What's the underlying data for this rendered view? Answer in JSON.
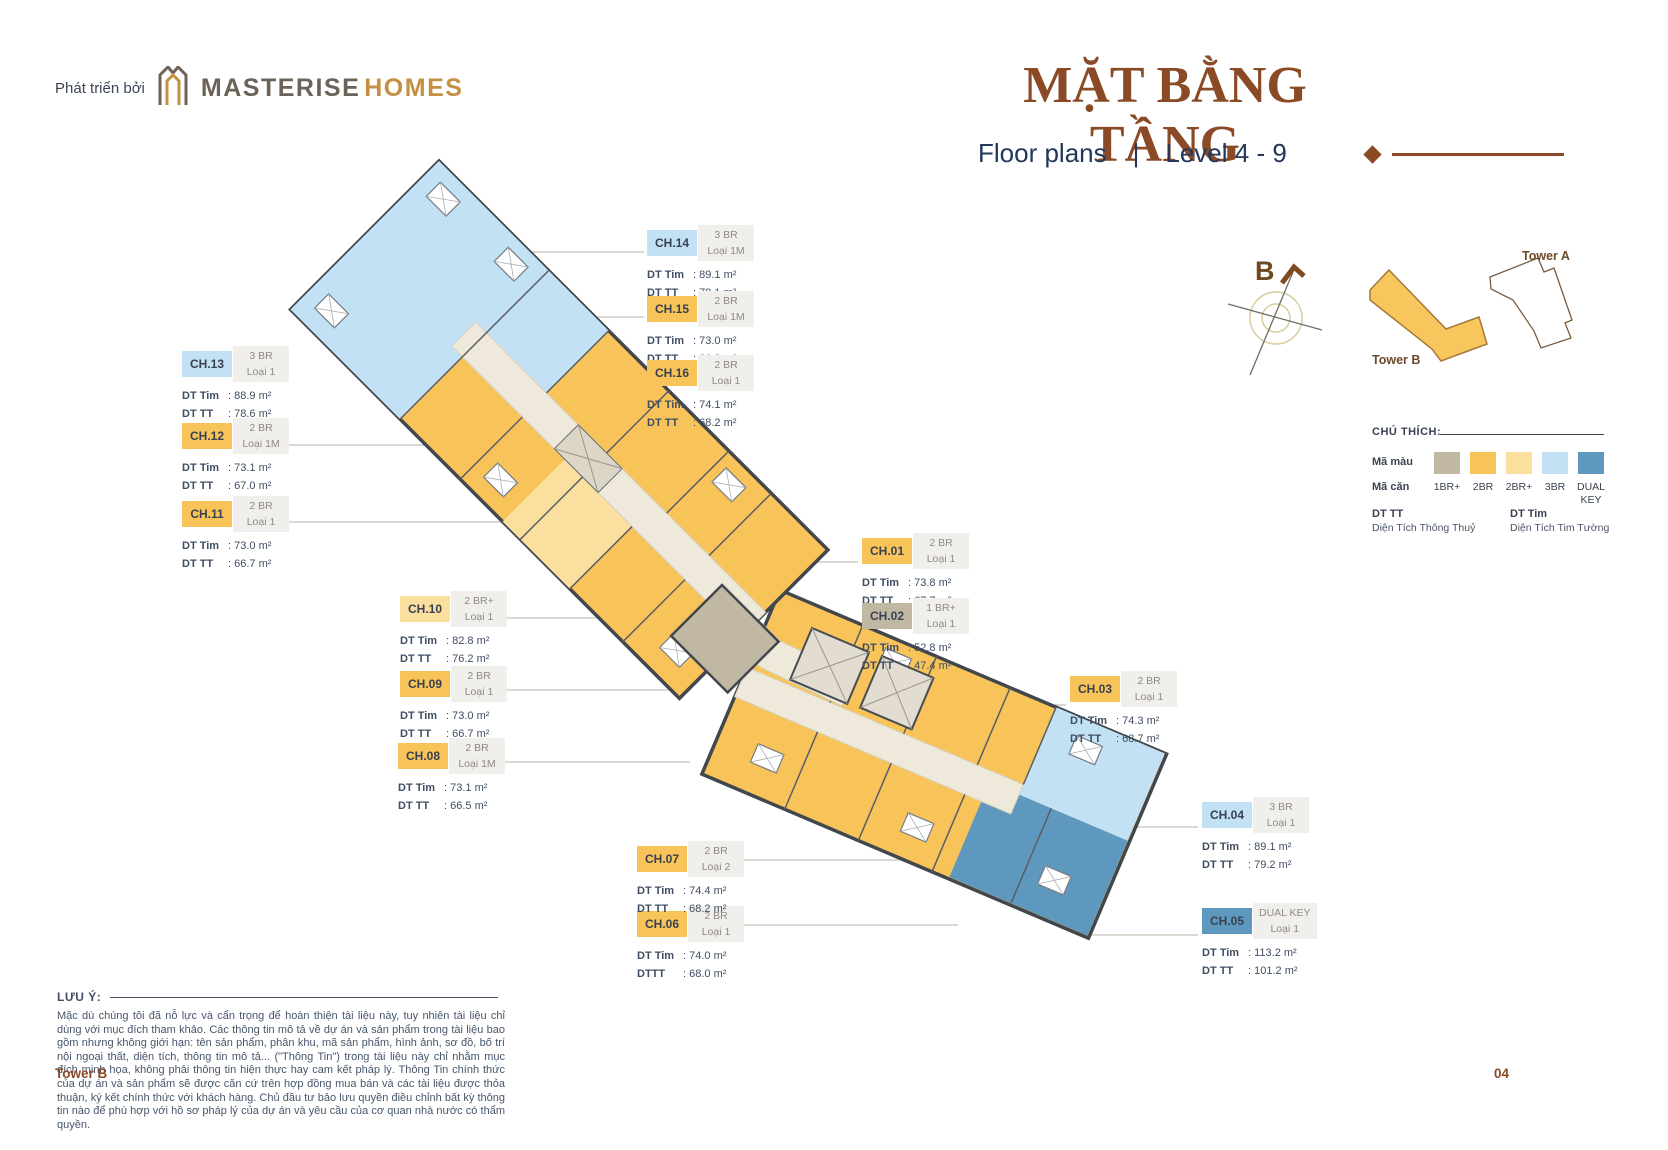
{
  "header": {
    "developed_by": "Phát triển bởi",
    "brand_name": "MASTERISE",
    "brand_suffix": "HOMES",
    "title": "MẶT BẰNG TẦNG",
    "subtitle_en": "Floor plans",
    "subtitle_divider": "|",
    "subtitle_level": "Level 4 - 9",
    "accent_color": "#8a4a26"
  },
  "locator": {
    "compass_label": "B",
    "tower_b": "Tower B",
    "tower_a": "Tower A"
  },
  "legend": {
    "heading": "CHÚ THÍCH:",
    "color_row_label": "Mã màu",
    "unit_row_label": "Mã căn",
    "types": [
      {
        "label": "1BR+",
        "color": "#c1b8a4"
      },
      {
        "label": "2BR",
        "color": "#f8c45a"
      },
      {
        "label": "2BR+",
        "color": "#fbdf9f"
      },
      {
        "label": "3BR",
        "color": "#c3e1f5"
      },
      {
        "label": "DUAL KEY",
        "color": "#5e98be"
      }
    ],
    "dual_key_line1": "DUAL",
    "dual_key_line2": "KEY",
    "dt_tt_abbr": "DT TT",
    "dt_tt_full": "Diện Tích Thông Thuỷ",
    "dt_tim_abbr": "DT Tim",
    "dt_tim_full": "Diện Tích Tim Tường"
  },
  "units": [
    {
      "code": "CH.01",
      "type": "2 BR",
      "loai": "Loại 1",
      "tim_label": "DT Tim",
      "tim": ": 73.8 m²",
      "tt_label": "DT TT",
      "tt": ": 67.7 m²",
      "color_key": "2BR"
    },
    {
      "code": "CH.02",
      "type": "1 BR+",
      "loai": "Loại 1",
      "tim_label": "DT Tim",
      "tim": ": 52.8 m²",
      "tt_label": "DT TT",
      "tt": ": 47.4 m²",
      "color_key": "1BR+"
    },
    {
      "code": "CH.03",
      "type": "2 BR",
      "loai": "Loại 1",
      "tim_label": "DT Tim",
      "tim": ": 74.3 m²",
      "tt_label": "DT TT",
      "tt": ": 68.7 m²",
      "color_key": "2BR"
    },
    {
      "code": "CH.04",
      "type": "3 BR",
      "loai": "Loại 1",
      "tim_label": "DT Tim",
      "tim": ": 89.1 m²",
      "tt_label": "DT TT",
      "tt": ": 79.2 m²",
      "color_key": "3BR"
    },
    {
      "code": "CH.05",
      "type": "DUAL KEY",
      "loai": "Loại 1",
      "tim_label": "DT Tim",
      "tim": ": 113.2 m²",
      "tt_label": "DT TT",
      "tt": ": 101.2 m²",
      "color_key": "DUAL KEY"
    },
    {
      "code": "CH.06",
      "type": "2 BR",
      "loai": "Loại 1",
      "tim_label": "DT Tim",
      "tim": ": 74.0 m²",
      "tt_label": "DTTT",
      "tt": ": 68.0 m²",
      "color_key": "2BR"
    },
    {
      "code": "CH.07",
      "type": "2 BR",
      "loai": "Loại 2",
      "tim_label": "DT Tim",
      "tim": ": 74.4 m²",
      "tt_label": "DT TT",
      "tt": ": 68.2 m²",
      "color_key": "2BR"
    },
    {
      "code": "CH.08",
      "type": "2 BR",
      "loai": "Loại 1M",
      "tim_label": "DT Tim",
      "tim": ": 73.1 m²",
      "tt_label": "DT TT",
      "tt": ": 66.5 m²",
      "color_key": "2BR"
    },
    {
      "code": "CH.09",
      "type": "2 BR",
      "loai": "Loại 1",
      "tim_label": "DT Tim",
      "tim": ": 73.0 m²",
      "tt_label": "DT TT",
      "tt": ": 66.7 m²",
      "color_key": "2BR"
    },
    {
      "code": "CH.10",
      "type": "2 BR+",
      "loai": "Loại 1",
      "tim_label": "DT Tim",
      "tim": ": 82.8 m²",
      "tt_label": "DT TT",
      "tt": ": 76.2 m²",
      "color_key": "2BR+"
    },
    {
      "code": "CH.11",
      "type": "2 BR",
      "loai": "Loại 1",
      "tim_label": "DT Tim",
      "tim": ": 73.0 m²",
      "tt_label": "DT TT",
      "tt": ": 66.7 m²",
      "color_key": "2BR"
    },
    {
      "code": "CH.12",
      "type": "2 BR",
      "loai": "Loại 1M",
      "tim_label": "DT Tim",
      "tim": ": 73.1 m²",
      "tt_label": "DT TT",
      "tt": ": 67.0 m²",
      "color_key": "2BR"
    },
    {
      "code": "CH.13",
      "type": "3 BR",
      "loai": "Loại 1",
      "tim_label": "DT Tim",
      "tim": ": 88.9 m²",
      "tt_label": "DT TT",
      "tt": ": 78.6 m²",
      "color_key": "3BR"
    },
    {
      "code": "CH.14",
      "type": "3 BR",
      "loai": "Loại 1M",
      "tim_label": "DT Tim",
      "tim": ": 89.1 m²",
      "tt_label": "DT TT",
      "tt": ": 79.1 m²",
      "color_key": "3BR"
    },
    {
      "code": "CH.15",
      "type": "2 BR",
      "loai": "Loại 1M",
      "tim_label": "DT Tim",
      "tim": ": 73.0 m²",
      "tt_label": "DT TT",
      "tt": ": 66.8 m²",
      "color_key": "2BR"
    },
    {
      "code": "CH.16",
      "type": "2 BR",
      "loai": "Loại 1",
      "tim_label": "DT Tim",
      "tim": ": 74.1 m²",
      "tt_label": "DT TT",
      "tt": ": 68.2 m²",
      "color_key": "2BR"
    }
  ],
  "notes": {
    "heading": "LƯU Ý:",
    "body": "Mặc dù chúng tôi đã nỗ lực và cẩn trọng để hoàn thiện tài liệu này, tuy nhiên tài liệu chỉ dùng với mục đích tham khảo. Các thông tin mô tả về dự án và sản phẩm trong tài liệu bao gồm nhưng không giới hạn: tên sản phẩm, phân khu, mã sản phẩm, hình ảnh, sơ đồ, bố trí nội ngoại thất, diện tích, thông tin mô tả... (\"Thông Tin\") trong tài liệu này chỉ nhằm mục đích minh họa, không phải thông tin hiện thực hay cam kết pháp lý. Thông Tin chính thức của dự án và sản phẩm sẽ được căn cứ trên hợp đồng mua bán và các tài liệu được thỏa thuận, ký kết chính thức với khách hàng. Chủ đầu tư bảo lưu quyền điều chỉnh bất kỳ thông tin nào để phù hợp với hồ sơ pháp lý của dự án và yêu cầu của cơ quan nhà nước có thẩm quyền."
  },
  "footer": {
    "tower": "Tower B",
    "page": "04"
  }
}
